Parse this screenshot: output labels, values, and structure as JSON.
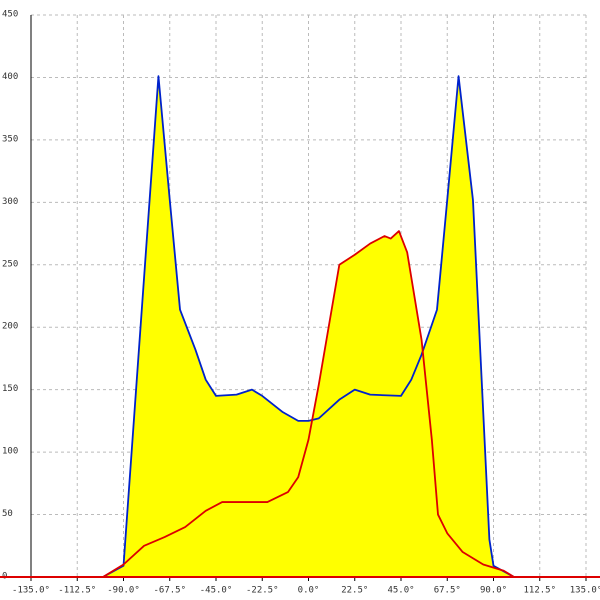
{
  "chart_data": {
    "type": "area",
    "xlim": [
      -135,
      135
    ],
    "xticks": [
      {
        "value": -135,
        "label": "-135.0°"
      },
      {
        "value": -112.5,
        "label": "-112.5°"
      },
      {
        "value": -90,
        "label": "-90.0°"
      },
      {
        "value": -67.5,
        "label": "-67.5°"
      },
      {
        "value": -45,
        "label": "-45.0°"
      },
      {
        "value": -22.5,
        "label": "-22.5°"
      },
      {
        "value": 0,
        "label": "0.0°"
      },
      {
        "value": 22.5,
        "label": "22.5°"
      },
      {
        "value": 45,
        "label": "45.0°"
      },
      {
        "value": 67.5,
        "label": "67.5°"
      },
      {
        "value": 90,
        "label": "90.0°"
      },
      {
        "value": 112.5,
        "label": "112.5°"
      },
      {
        "value": 135,
        "label": "135.0°"
      }
    ],
    "ylim": [
      0,
      450
    ],
    "yticks": [
      0,
      50,
      100,
      150,
      200,
      250,
      300,
      350,
      400,
      450
    ],
    "grid": true,
    "fill": "#ffff00",
    "series": [
      {
        "color": "#0022cc",
        "x": [
          -100,
          -90,
          -73,
          -67.5,
          -62.5,
          -55,
          -50,
          -45,
          -35,
          -27.5,
          -22.5,
          -12.5,
          -5,
          0,
          5,
          15,
          22.5,
          30,
          45,
          50,
          55,
          62.5,
          67.5,
          73,
          80,
          88,
          90,
          100
        ],
        "values": [
          0,
          9,
          401,
          302,
          214,
          182,
          158,
          145,
          146,
          150,
          145,
          132,
          125,
          125,
          127,
          142,
          150,
          146,
          145,
          158,
          178,
          214,
          302,
          401,
          302,
          30,
          9,
          0
        ]
      },
      {
        "color": "#dd0000",
        "x": [
          -100,
          -90,
          -80,
          -70,
          -60,
          -50,
          -42,
          -30,
          -20,
          -10,
          -5,
          0,
          5,
          15,
          22.5,
          30,
          37,
          40,
          44,
          48,
          55,
          60,
          63,
          67.5,
          75,
          85,
          95,
          100
        ],
        "values": [
          0,
          10,
          25,
          32,
          40,
          53,
          60,
          60,
          60,
          68,
          80,
          110,
          154,
          250,
          258,
          267,
          273,
          271,
          277,
          260,
          190,
          110,
          50,
          35,
          20,
          10,
          5,
          0
        ]
      }
    ]
  }
}
